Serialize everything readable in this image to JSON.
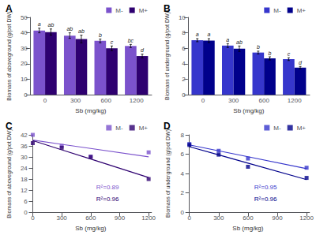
{
  "chart_data": [
    {
      "type": "bar",
      "title": "A",
      "categories": [
        "0",
        "300",
        "600",
        "1200"
      ],
      "series": [
        {
          "name": "M-",
          "color": "#7B52CC",
          "values": [
            41.5,
            38.2,
            34.8,
            31.5
          ],
          "errors": [
            1.5,
            1.8,
            1.2,
            1.0
          ],
          "annotations": [
            "a",
            "ab",
            "b",
            "bc"
          ]
        },
        {
          "name": "M+",
          "color": "#2E0070",
          "values": [
            40.5,
            36.0,
            30.0,
            25.0
          ],
          "errors": [
            2.0,
            2.5,
            1.5,
            1.2
          ],
          "annotations": [
            "ab",
            "ab",
            "c",
            "d"
          ]
        }
      ],
      "xlabel": "Sb (mg/kg)",
      "ylabel": "Biomass of aboveground (g/pot DW)",
      "ylim": [
        0,
        50
      ],
      "yticks": [
        0,
        10,
        20,
        30,
        40,
        50
      ],
      "legend": "upper right",
      "grid": false
    },
    {
      "type": "bar",
      "title": "B",
      "categories": [
        "0",
        "300",
        "600",
        "1200"
      ],
      "series": [
        {
          "name": "M-",
          "color": "#3636CC",
          "values": [
            7.05,
            6.35,
            5.45,
            4.6
          ],
          "errors": [
            0.2,
            0.25,
            0.18,
            0.18
          ],
          "annotations": [
            "a",
            "a",
            "b",
            "c"
          ]
        },
        {
          "name": "M+",
          "color": "#00008B",
          "values": [
            7.0,
            5.95,
            4.7,
            3.5
          ],
          "errors": [
            0.25,
            0.35,
            0.2,
            0.15
          ],
          "annotations": [
            "a",
            "ab",
            "b",
            "d"
          ]
        }
      ],
      "xlabel": "Sb (mg/kg)",
      "ylabel": "Biomass of underground (g/pot DW)",
      "ylim": [
        0,
        10
      ],
      "yticks": [
        0,
        2,
        4,
        6,
        8,
        10
      ],
      "legend": "upper right",
      "grid": false
    },
    {
      "type": "scatter",
      "title": "C",
      "x": [
        0,
        300,
        600,
        1200
      ],
      "series": [
        {
          "name": "M-",
          "color": "#7B52CC",
          "marker": "square",
          "values": [
            42.0,
            36.0,
            30.2,
            32.5
          ],
          "fit_values": [
            39.14,
            36.874286,
            34.608571,
            30.077143
          ],
          "annotation": "R²=0.89"
        },
        {
          "name": "M+",
          "color": "#2E0070",
          "marker": "square",
          "values": [
            37.5,
            35.0,
            30.0,
            18.0
          ],
          "fit_values": [
            38.9,
            33.885714,
            28.871429,
            18.842857
          ],
          "annotation": "R²=0.96"
        }
      ],
      "xlabel": "Sb (mg/kg)",
      "ylabel": "Biomass of aboveground (g/pot DW)",
      "xlim": [
        -30,
        1230
      ],
      "xticks": [
        0,
        300,
        600,
        900,
        1200
      ],
      "ylim": [
        0,
        42
      ],
      "yticks": [
        0,
        6,
        12,
        18,
        24,
        30,
        36,
        42
      ],
      "legend": "upper right",
      "grid": false
    },
    {
      "type": "scatter",
      "title": "D",
      "x": [
        0,
        300,
        600,
        1200
      ],
      "series": [
        {
          "name": "M-",
          "color": "#3636CC",
          "marker": "square",
          "values": [
            7.05,
            6.35,
            5.55,
            4.6
          ],
          "fit_values": [
            6.96,
            6.347143,
            5.734286,
            4.508571
          ],
          "annotation": "R²=0.95"
        },
        {
          "name": "M+",
          "color": "#00008B",
          "marker": "square",
          "values": [
            6.95,
            5.95,
            4.7,
            3.55
          ],
          "fit_values": [
            6.78,
            5.927143,
            5.074286,
            3.368571
          ],
          "annotation": "R²=0.96"
        }
      ],
      "xlabel": "Sb (mg/kg)",
      "ylabel": "Biomass of underground (g/pot DW)",
      "xlim": [
        -30,
        1230
      ],
      "xticks": [
        0,
        300,
        600,
        900,
        1200
      ],
      "ylim": [
        0,
        8
      ],
      "yticks": [
        0,
        2,
        4,
        6,
        8
      ],
      "legend": "upper right",
      "grid": false
    }
  ]
}
